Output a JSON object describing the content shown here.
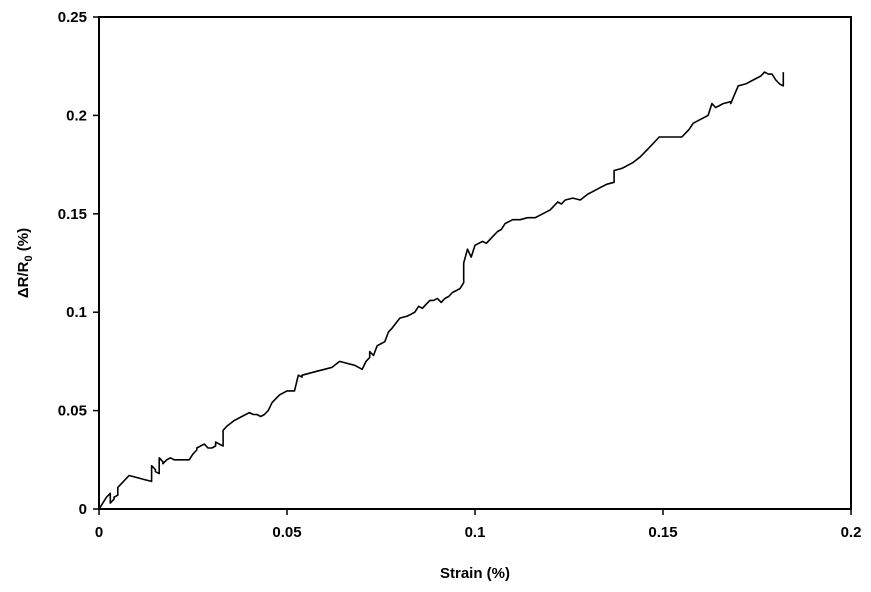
{
  "chart_data": {
    "type": "line",
    "title": "",
    "xlabel": "Strain (%)",
    "ylabel_parts": {
      "main": "ΔR/R",
      "subscript": "0",
      "suffix": " (%)"
    },
    "xlim": [
      0,
      0.2
    ],
    "ylim": [
      0,
      0.25
    ],
    "xticks": [
      "0",
      "0.05",
      "0.1",
      "0.15",
      "0.2"
    ],
    "yticks": [
      "0",
      "0.05",
      "0.1",
      "0.15",
      "0.2",
      "0.25"
    ],
    "grid": false,
    "legend": "none",
    "line_color": "#000000",
    "series": [
      {
        "x": [
          0.0,
          0.001,
          0.002,
          0.003,
          0.003,
          0.004,
          0.004,
          0.005,
          0.005,
          0.006,
          0.007,
          0.008,
          0.01,
          0.012,
          0.014,
          0.014,
          0.015,
          0.015,
          0.016,
          0.016,
          0.017,
          0.017,
          0.018,
          0.019,
          0.02,
          0.022,
          0.024,
          0.025,
          0.026,
          0.026,
          0.028,
          0.029,
          0.03,
          0.031,
          0.031,
          0.032,
          0.033,
          0.033,
          0.034,
          0.036,
          0.038,
          0.04,
          0.041,
          0.042,
          0.043,
          0.044,
          0.045,
          0.046,
          0.047,
          0.048,
          0.049,
          0.05,
          0.051,
          0.052,
          0.053,
          0.054,
          0.054,
          0.056,
          0.058,
          0.06,
          0.062,
          0.064,
          0.066,
          0.068,
          0.07,
          0.071,
          0.072,
          0.072,
          0.073,
          0.074,
          0.076,
          0.077,
          0.078,
          0.08,
          0.082,
          0.083,
          0.084,
          0.085,
          0.086,
          0.087,
          0.088,
          0.089,
          0.09,
          0.091,
          0.092,
          0.093,
          0.094,
          0.095,
          0.096,
          0.097,
          0.097,
          0.098,
          0.099,
          0.1,
          0.101,
          0.102,
          0.103,
          0.104,
          0.105,
          0.106,
          0.107,
          0.108,
          0.11,
          0.112,
          0.114,
          0.116,
          0.118,
          0.12,
          0.121,
          0.122,
          0.123,
          0.124,
          0.126,
          0.128,
          0.13,
          0.131,
          0.133,
          0.135,
          0.137,
          0.137,
          0.139,
          0.14,
          0.142,
          0.144,
          0.146,
          0.148,
          0.149,
          0.152,
          0.155,
          0.156,
          0.157,
          0.158,
          0.16,
          0.162,
          0.163,
          0.164,
          0.165,
          0.166,
          0.168,
          0.168,
          0.17,
          0.172,
          0.174,
          0.176,
          0.177,
          0.178,
          0.179,
          0.18,
          0.181,
          0.182,
          0.182
        ],
        "y": [
          0.0,
          0.003,
          0.006,
          0.008,
          0.003,
          0.005,
          0.006,
          0.007,
          0.011,
          0.013,
          0.015,
          0.017,
          0.016,
          0.015,
          0.014,
          0.022,
          0.02,
          0.019,
          0.018,
          0.026,
          0.024,
          0.023,
          0.025,
          0.026,
          0.025,
          0.025,
          0.025,
          0.028,
          0.03,
          0.031,
          0.033,
          0.031,
          0.031,
          0.032,
          0.034,
          0.033,
          0.032,
          0.04,
          0.042,
          0.045,
          0.047,
          0.049,
          0.048,
          0.048,
          0.047,
          0.048,
          0.05,
          0.054,
          0.056,
          0.058,
          0.059,
          0.06,
          0.06,
          0.06,
          0.068,
          0.067,
          0.068,
          0.069,
          0.07,
          0.071,
          0.072,
          0.075,
          0.074,
          0.073,
          0.071,
          0.075,
          0.077,
          0.08,
          0.078,
          0.083,
          0.085,
          0.09,
          0.092,
          0.097,
          0.098,
          0.099,
          0.1,
          0.103,
          0.102,
          0.104,
          0.106,
          0.106,
          0.107,
          0.105,
          0.107,
          0.108,
          0.11,
          0.111,
          0.112,
          0.115,
          0.125,
          0.132,
          0.128,
          0.134,
          0.135,
          0.136,
          0.135,
          0.137,
          0.139,
          0.141,
          0.142,
          0.145,
          0.147,
          0.147,
          0.148,
          0.148,
          0.15,
          0.152,
          0.154,
          0.156,
          0.155,
          0.157,
          0.158,
          0.157,
          0.16,
          0.161,
          0.163,
          0.165,
          0.166,
          0.172,
          0.173,
          0.174,
          0.176,
          0.179,
          0.183,
          0.187,
          0.189,
          0.189,
          0.189,
          0.191,
          0.193,
          0.196,
          0.198,
          0.2,
          0.206,
          0.204,
          0.205,
          0.206,
          0.207,
          0.206,
          0.215,
          0.216,
          0.218,
          0.22,
          0.222,
          0.221,
          0.221,
          0.218,
          0.216,
          0.215,
          0.222
        ]
      }
    ]
  }
}
